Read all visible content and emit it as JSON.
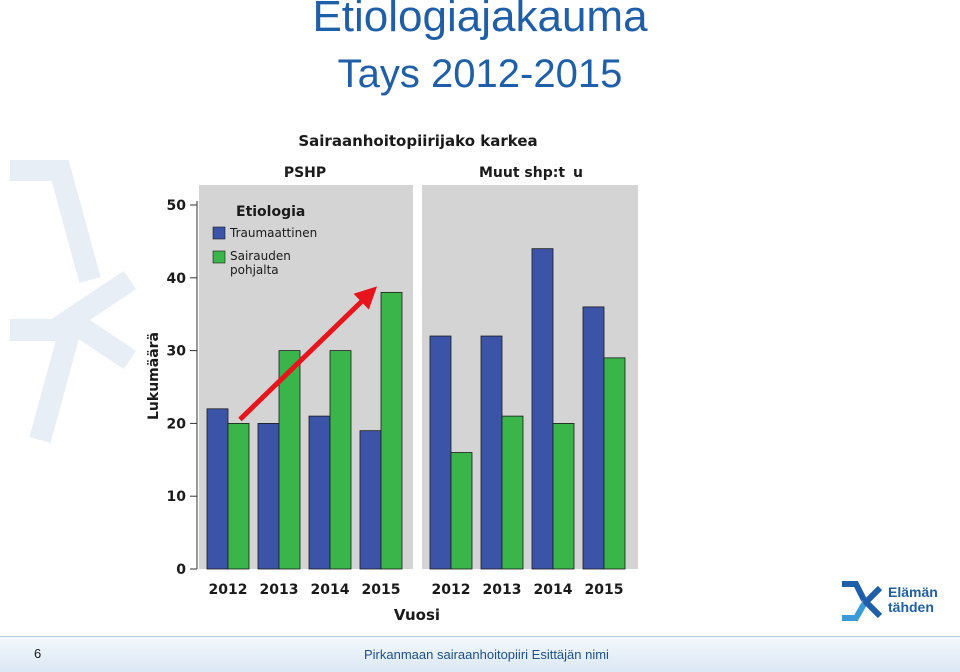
{
  "slide": {
    "title_line1": "Etiologiajakauma",
    "title_line2": "Tays 2012-2015",
    "page_number": "6",
    "footer_text": "Pirkanmaan sairaanhoitopiiri  Esittäjän nimi",
    "logo_text": "Elämän\ntähden",
    "accent_color": "#1f5ea8"
  },
  "chart_data": {
    "type": "bar",
    "title": "Sairaanhoitopiirijako karkea",
    "xlabel": "Vuosi",
    "ylabel": "Lukumäärä",
    "ylim": [
      0,
      50
    ],
    "yticks": [
      0,
      10,
      20,
      30,
      40,
      50
    ],
    "legend": {
      "title": "Etiologia",
      "placement": "top-left",
      "entries": [
        "Traumaattinen",
        "Sairauden pohjalta"
      ]
    },
    "categories": [
      "2012",
      "2013",
      "2014",
      "2015"
    ],
    "panels": [
      {
        "label": "PSHP",
        "series": [
          {
            "name": "Traumaattinen",
            "color": "#3c54a8",
            "values": [
              22,
              20,
              21,
              19
            ]
          },
          {
            "name": "Sairauden pohjalta",
            "color": "#3ab54a",
            "values": [
              20,
              30,
              30,
              38
            ]
          }
        ]
      },
      {
        "label": "Muut shp:t",
        "label_suffix": "u",
        "series": [
          {
            "name": "Traumaattinen",
            "color": "#3c54a8",
            "values": [
              32,
              32,
              44,
              36
            ]
          },
          {
            "name": "Sairauden pohjalta",
            "color": "#3ab54a",
            "values": [
              16,
              21,
              20,
              29
            ]
          }
        ]
      }
    ],
    "annotation": {
      "type": "trend-arrow",
      "color": "#e8141c",
      "panel": 0,
      "from_category": "2012",
      "to_category": "2015"
    }
  }
}
